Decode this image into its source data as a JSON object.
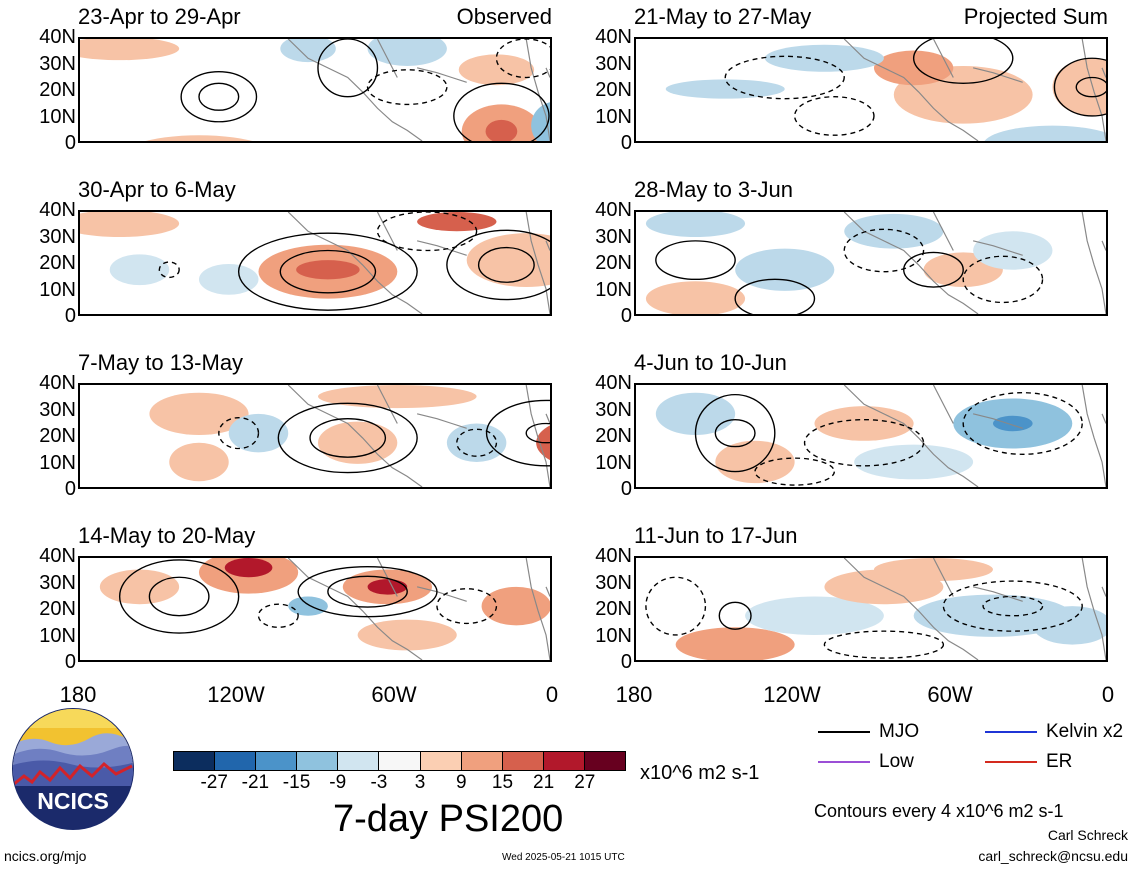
{
  "panels": {
    "left": [
      {
        "title": "23-Apr to 29-Apr",
        "tag": "Observed"
      },
      {
        "title": "30-Apr to 6-May",
        "tag": ""
      },
      {
        "title": "7-May to 13-May",
        "tag": ""
      },
      {
        "title": "14-May to 20-May",
        "tag": ""
      }
    ],
    "right": [
      {
        "title": "21-May to 27-May",
        "tag": "Projected Sum"
      },
      {
        "title": "28-May to 3-Jun",
        "tag": ""
      },
      {
        "title": "4-Jun to 10-Jun",
        "tag": ""
      },
      {
        "title": "11-Jun to 17-Jun",
        "tag": ""
      }
    ]
  },
  "lat_labels": [
    "40N",
    "30N",
    "20N",
    "10N",
    "0"
  ],
  "lon_labels": [
    "180",
    "120W",
    "60W",
    "0"
  ],
  "colorbar": {
    "labels": [
      "-27",
      "-21",
      "-15",
      "-9",
      "-3",
      "3",
      "9",
      "15",
      "21",
      "27"
    ],
    "colors": [
      "#0c2d5e",
      "#2166ac",
      "#4b93c9",
      "#8fc2de",
      "#d1e5f0",
      "#f7f7f7",
      "#fbcfb3",
      "#f0a07e",
      "#d6604d",
      "#b2182b",
      "#67001f"
    ],
    "units": "x10^6 m2 s-1"
  },
  "legend": {
    "items": [
      {
        "label": "MJO",
        "color": "#000000"
      },
      {
        "label": "Kelvin x2",
        "color": "#1f35d6"
      },
      {
        "label": "Low",
        "color": "#9b4fd6"
      },
      {
        "label": "ER",
        "color": "#d42a1e"
      }
    ],
    "contours_note": "Contours every 4 x10^6 m2 s-1"
  },
  "main_title": "7-day PSI200",
  "logo_text": "NCICS",
  "footer": {
    "url": "ncics.org/mjo",
    "timestamp": "Wed 2025-05-21 1015 UTC",
    "author": "Carl Schreck",
    "email": "carl_schreck@ncsu.edu"
  }
}
